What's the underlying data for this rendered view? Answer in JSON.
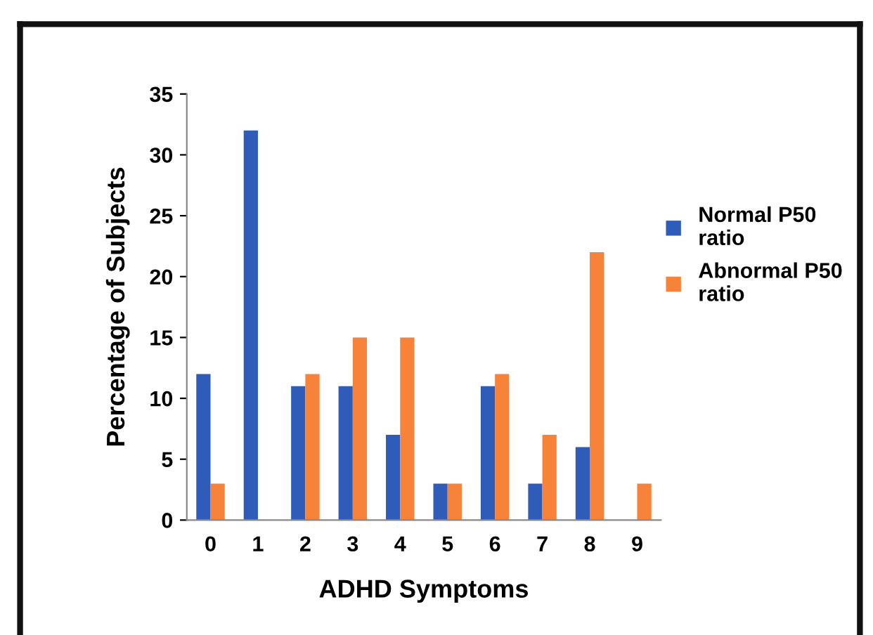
{
  "chart_data": {
    "type": "bar",
    "xlabel": "ADHD Symptoms",
    "ylabel": "Percentage of Subjects",
    "categories": [
      "0",
      "1",
      "2",
      "3",
      "4",
      "5",
      "6",
      "7",
      "8",
      "9"
    ],
    "series": [
      {
        "name": "Normal P50 ratio",
        "color": "#2e5cb8",
        "values": [
          12,
          32,
          11,
          11,
          7,
          3,
          11,
          3,
          6,
          0
        ]
      },
      {
        "name": "Abnormal P50 ratio",
        "color": "#f7823a",
        "values": [
          3,
          0,
          12,
          15,
          15,
          3,
          12,
          7,
          22,
          3
        ]
      }
    ],
    "ylim": [
      0,
      35
    ],
    "yticks": [
      0,
      5,
      10,
      15,
      20,
      25,
      30,
      35
    ],
    "grid": false,
    "legend": "right"
  }
}
